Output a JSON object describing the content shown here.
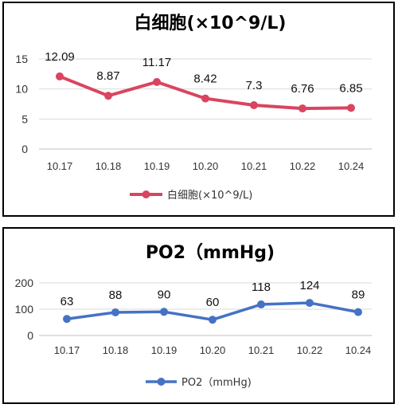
{
  "chart_data": [
    {
      "type": "line",
      "title": "白细胞(×10^9/L)",
      "categories": [
        "10.17",
        "10.18",
        "10.19",
        "10.20",
        "10.21",
        "10.22",
        "10.24"
      ],
      "series": [
        {
          "name": "白细胞(×10^9/L)",
          "values": [
            12.09,
            8.87,
            11.17,
            8.42,
            7.3,
            6.76,
            6.85
          ],
          "color": "#d9455f"
        }
      ],
      "data_labels": [
        "12.09",
        "8.87",
        "11.17",
        "8.42",
        "7.3",
        "6.76",
        "6.85"
      ],
      "yticks": [
        "0",
        "5",
        "10",
        "15"
      ],
      "ylim": [
        0,
        15
      ],
      "grid": true,
      "legend_position": "bottom"
    },
    {
      "type": "line",
      "title": "PO2（mmHg)",
      "categories": [
        "10.17",
        "10.18",
        "10.19",
        "10.20",
        "10.21",
        "10.22",
        "10.24"
      ],
      "series": [
        {
          "name": "PO2（mmHg)",
          "values": [
            63,
            88,
            90,
            60,
            118,
            124,
            89
          ],
          "color": "#4472c4"
        }
      ],
      "data_labels": [
        "63",
        "88",
        "90",
        "60",
        "118",
        "124",
        "89"
      ],
      "yticks": [
        "0",
        "100",
        "200"
      ],
      "ylim": [
        0,
        200
      ],
      "grid": true,
      "legend_position": "bottom"
    }
  ]
}
